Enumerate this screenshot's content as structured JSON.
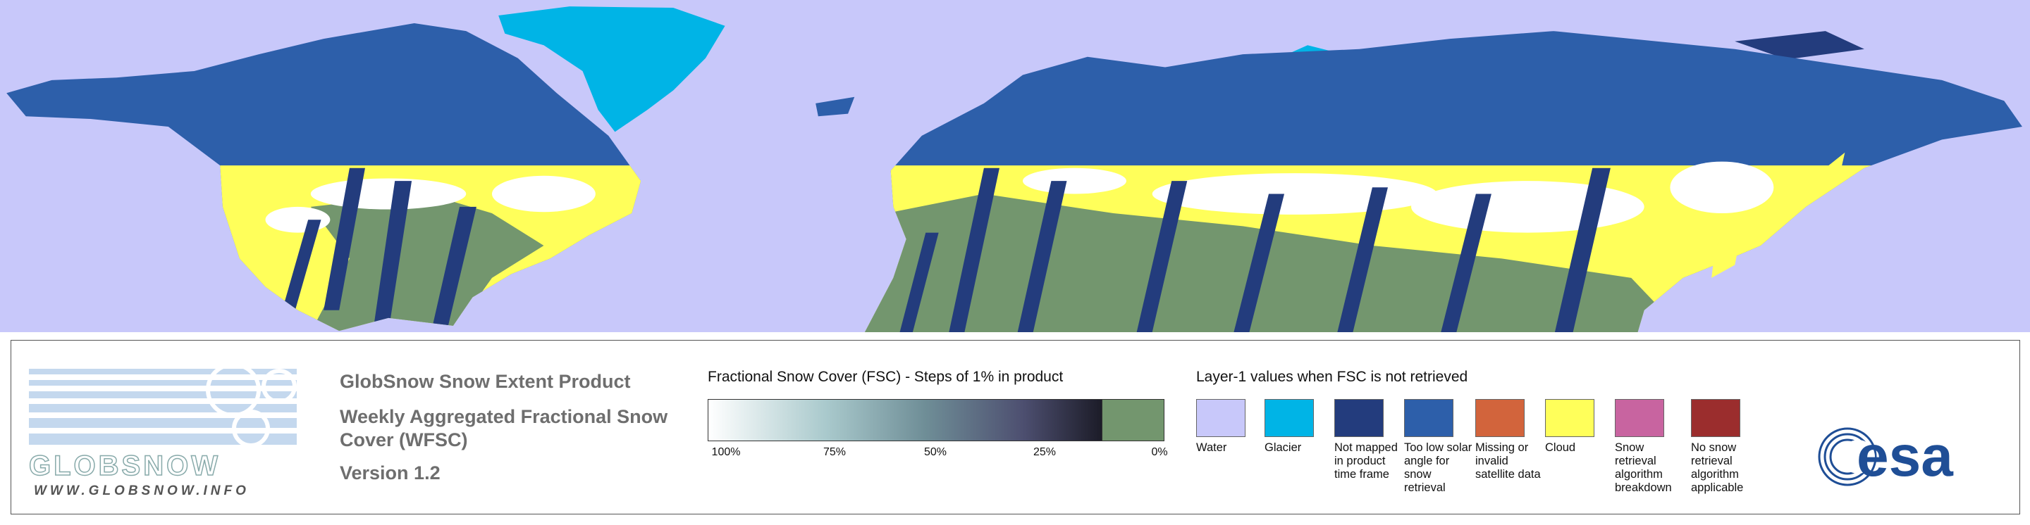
{
  "logo": {
    "name": "GLOBSNOW",
    "url": "WWW.GLOBSNOW.INFO"
  },
  "header": {
    "product": "GlobSnow Snow Extent Product",
    "subtitle": "Weekly Aggregated Fractional Snow Cover (WFSC)",
    "version": "Version 1.2"
  },
  "fsc_legend": {
    "title": "Fractional Snow Cover (FSC) - Steps of 1% in product",
    "ticks": [
      "100%",
      "75%",
      "50%",
      "25%",
      "0%"
    ]
  },
  "layer1_legend": {
    "title": "Layer-1 values when FSC is not retrieved",
    "items": [
      {
        "label": "Water",
        "color": "#c8c8fa"
      },
      {
        "label": "Glacier",
        "color": "#00b4e6"
      },
      {
        "label": "Not mapped in product time frame",
        "color": "#233c7d"
      },
      {
        "label": "Too low solar angle for snow retrieval",
        "color": "#2d5faa"
      },
      {
        "label": "Missing or invalid satellite data",
        "color": "#d2643c"
      },
      {
        "label": "Cloud",
        "color": "#ffff5a"
      },
      {
        "label": "Snow retrieval algorithm breakdown",
        "color": "#c864a0"
      },
      {
        "label": "No snow retrieval algorithm applicable",
        "color": "#9b2d2d"
      }
    ]
  },
  "agency": "esa"
}
